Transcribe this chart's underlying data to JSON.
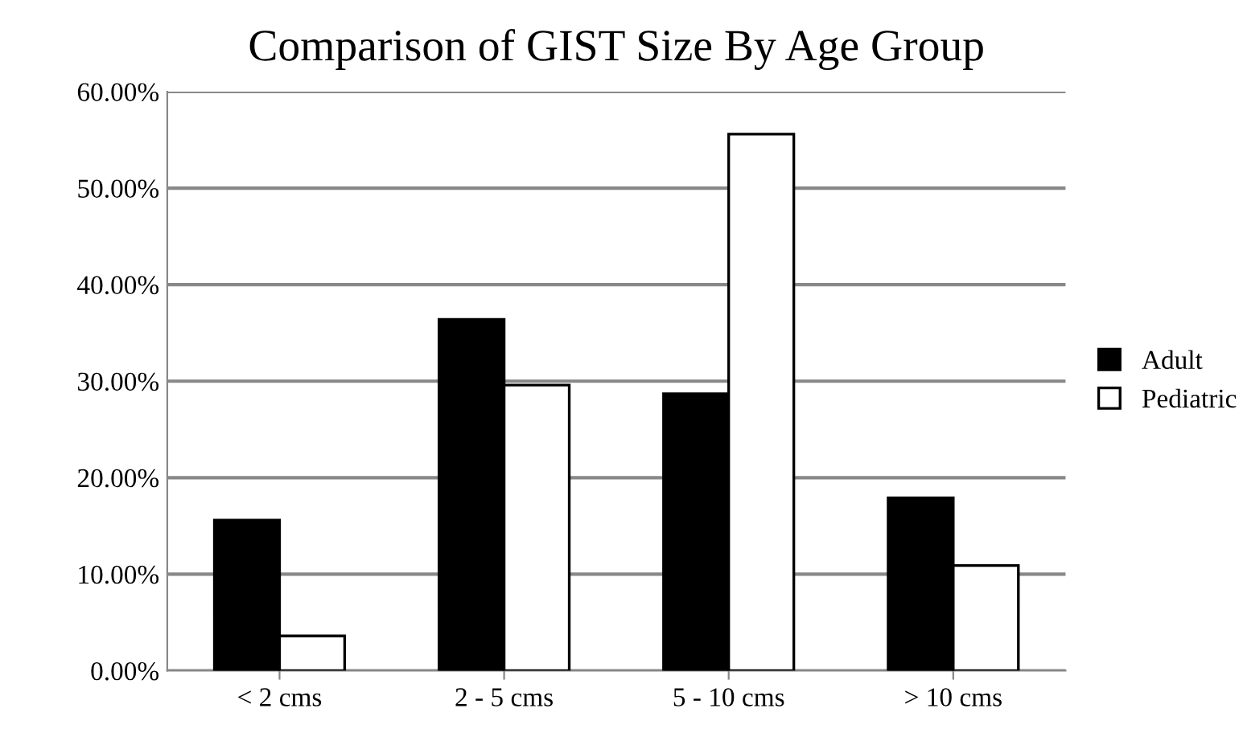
{
  "chart_data": {
    "type": "bar",
    "title": "Comparison of GIST Size By Age Group",
    "categories": [
      "< 2 cms",
      "2 - 5 cms",
      "5 - 10 cms",
      "> 10 cms"
    ],
    "series": [
      {
        "name": "Adult",
        "color": "#000000",
        "values": [
          15.6,
          36.4,
          28.7,
          17.9
        ]
      },
      {
        "name": "Pediatric",
        "color": "#ffffff",
        "values": [
          3.6,
          29.6,
          55.6,
          10.9
        ]
      }
    ],
    "ylim": [
      0,
      60
    ],
    "yticks": [
      {
        "value": 0,
        "label": "0.00%"
      },
      {
        "value": 10,
        "label": "10.00%"
      },
      {
        "value": 20,
        "label": "20.00%"
      },
      {
        "value": 30,
        "label": "30.00%"
      },
      {
        "value": 40,
        "label": "40.00%"
      },
      {
        "value": 50,
        "label": "50.00%"
      },
      {
        "value": 60,
        "label": "60.00%"
      }
    ],
    "grid": "y",
    "legend": "right"
  }
}
